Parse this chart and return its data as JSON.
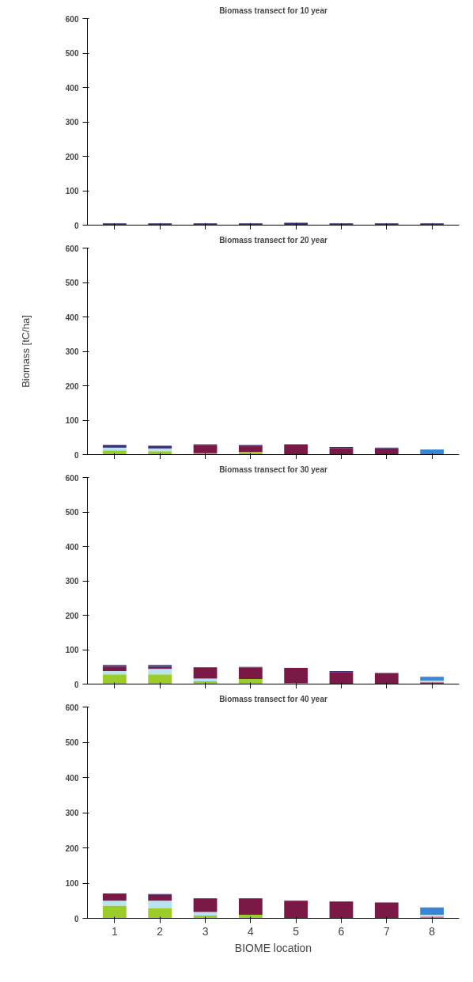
{
  "chart_data": [
    {
      "type": "bar",
      "stacked": true,
      "title": "Biomass transect for 10 year",
      "categories": [
        "1",
        "2",
        "3",
        "4",
        "5",
        "6",
        "7",
        "8"
      ],
      "ylim": [
        0,
        600
      ],
      "yticks": [
        0,
        100,
        200,
        300,
        400,
        500,
        600
      ],
      "tick_labels": "y",
      "grid": false,
      "series": [
        {
          "color": "#3b2f7a",
          "values": [
            5,
            5,
            5,
            5,
            7,
            5,
            5,
            5
          ]
        }
      ]
    },
    {
      "type": "bar",
      "stacked": true,
      "title": "Biomass transect for 20 year",
      "ylabel": "Biomass [tC/ha]",
      "categories": [
        "1",
        "2",
        "3",
        "4",
        "5",
        "6",
        "7",
        "8"
      ],
      "ylim": [
        0,
        600
      ],
      "yticks": [
        0,
        100,
        200,
        300,
        400,
        500,
        600
      ],
      "tick_labels": "y",
      "grid": false,
      "series": [
        {
          "color": "#9ccc2a",
          "values": [
            12,
            10,
            4,
            8,
            0,
            0,
            0,
            0
          ]
        },
        {
          "color": "#b8e4f2",
          "values": [
            8,
            8,
            0,
            0,
            0,
            0,
            0,
            0
          ]
        },
        {
          "color": "#7a1846",
          "values": [
            0,
            0,
            24,
            18,
            30,
            19,
            18,
            0
          ]
        },
        {
          "color": "#3b2f7a",
          "values": [
            8,
            8,
            2,
            2,
            0,
            3,
            2,
            0
          ]
        },
        {
          "color": "#3a86d4",
          "values": [
            0,
            0,
            0,
            0,
            0,
            0,
            0,
            15
          ]
        }
      ]
    },
    {
      "type": "bar",
      "stacked": true,
      "title": "Biomass transect for 30 year",
      "categories": [
        "1",
        "2",
        "3",
        "4",
        "5",
        "6",
        "7",
        "8"
      ],
      "ylim": [
        0,
        600
      ],
      "yticks": [
        0,
        100,
        200,
        300,
        400,
        500,
        600
      ],
      "tick_labels": "y",
      "grid": false,
      "series": [
        {
          "color": "#b0284a",
          "values": [
            0,
            0,
            0,
            0,
            0,
            0,
            0,
            5
          ]
        },
        {
          "color": "#d49a5a",
          "values": [
            0,
            0,
            0,
            0,
            3,
            0,
            0,
            0
          ]
        },
        {
          "color": "#9ccc2a",
          "values": [
            28,
            28,
            8,
            15,
            0,
            0,
            0,
            0
          ]
        },
        {
          "color": "#b8e4f2",
          "values": [
            10,
            16,
            8,
            0,
            0,
            0,
            0,
            5
          ]
        },
        {
          "color": "#7a1846",
          "values": [
            13,
            6,
            31,
            33,
            44,
            35,
            32,
            0
          ]
        },
        {
          "color": "#3b2f7a",
          "values": [
            4,
            5,
            2,
            2,
            0,
            3,
            0,
            0
          ]
        },
        {
          "color": "#3a86d4",
          "values": [
            0,
            0,
            0,
            0,
            0,
            0,
            0,
            11
          ]
        }
      ]
    },
    {
      "type": "bar",
      "stacked": true,
      "title": "Biomass transect for 40 year",
      "xlabel": "BIOME location",
      "categories": [
        "1",
        "2",
        "3",
        "4",
        "5",
        "6",
        "7",
        "8"
      ],
      "ylim": [
        0,
        600
      ],
      "yticks": [
        0,
        100,
        200,
        300,
        400,
        500,
        600
      ],
      "grid": false,
      "series": [
        {
          "color": "#9ccc2a",
          "values": [
            36,
            28,
            8,
            10,
            0,
            0,
            0,
            0
          ]
        },
        {
          "color": "#e07090",
          "values": [
            0,
            0,
            0,
            0,
            0,
            0,
            0,
            5
          ]
        },
        {
          "color": "#b8e4f2",
          "values": [
            14,
            22,
            10,
            0,
            0,
            0,
            0,
            5
          ]
        },
        {
          "color": "#7a1846",
          "values": [
            19,
            17,
            39,
            45,
            50,
            48,
            45,
            0
          ]
        },
        {
          "color": "#3b2f7a",
          "values": [
            2,
            2,
            0,
            2,
            0,
            0,
            0,
            0
          ]
        },
        {
          "color": "#3a86d4",
          "values": [
            0,
            0,
            0,
            0,
            0,
            0,
            0,
            21
          ]
        }
      ]
    }
  ]
}
